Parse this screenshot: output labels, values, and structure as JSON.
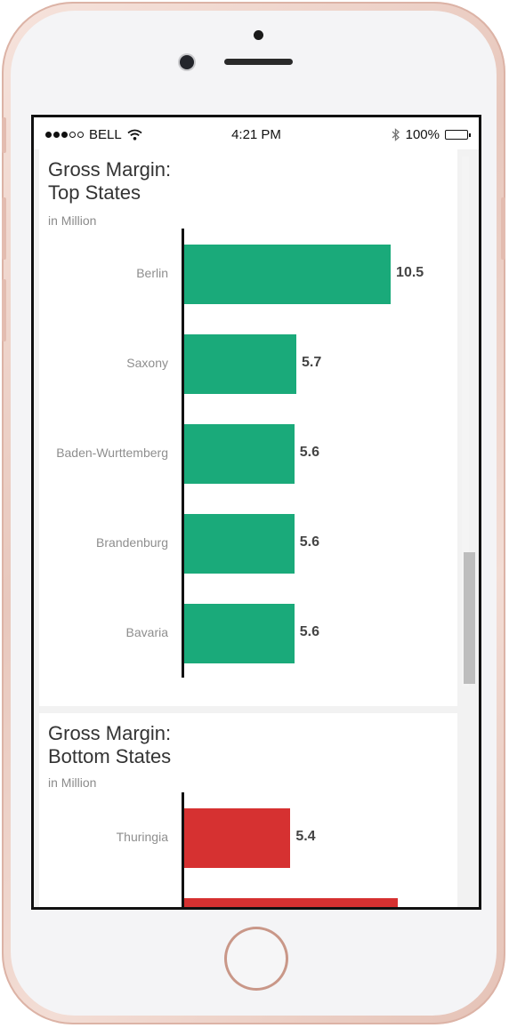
{
  "status_bar": {
    "carrier": "BELL",
    "time": "4:21 PM",
    "battery": "100%"
  },
  "charts": [
    {
      "title_line1": "Gross Margin:",
      "title_line2": "Top States",
      "subtitle": "in Million",
      "color": "#1aaa7a"
    },
    {
      "title_line1": "Gross Margin:",
      "title_line2": "Bottom States",
      "subtitle": "in Million",
      "color": "#d63131"
    }
  ],
  "chart_data": [
    {
      "type": "bar",
      "orientation": "horizontal",
      "title": "Gross Margin: Top States",
      "subtitle": "in Million",
      "categories": [
        "Berlin",
        "Saxony",
        "Baden-Wurttemberg",
        "Brandenburg",
        "Bavaria"
      ],
      "values": [
        10.5,
        5.7,
        5.6,
        5.6,
        5.6
      ],
      "color": "#1aaa7a"
    },
    {
      "type": "bar",
      "orientation": "horizontal",
      "title": "Gross Margin: Bottom States",
      "subtitle": "in Million",
      "categories": [
        "Thuringia"
      ],
      "values": [
        5.4
      ],
      "color": "#d63131"
    }
  ]
}
